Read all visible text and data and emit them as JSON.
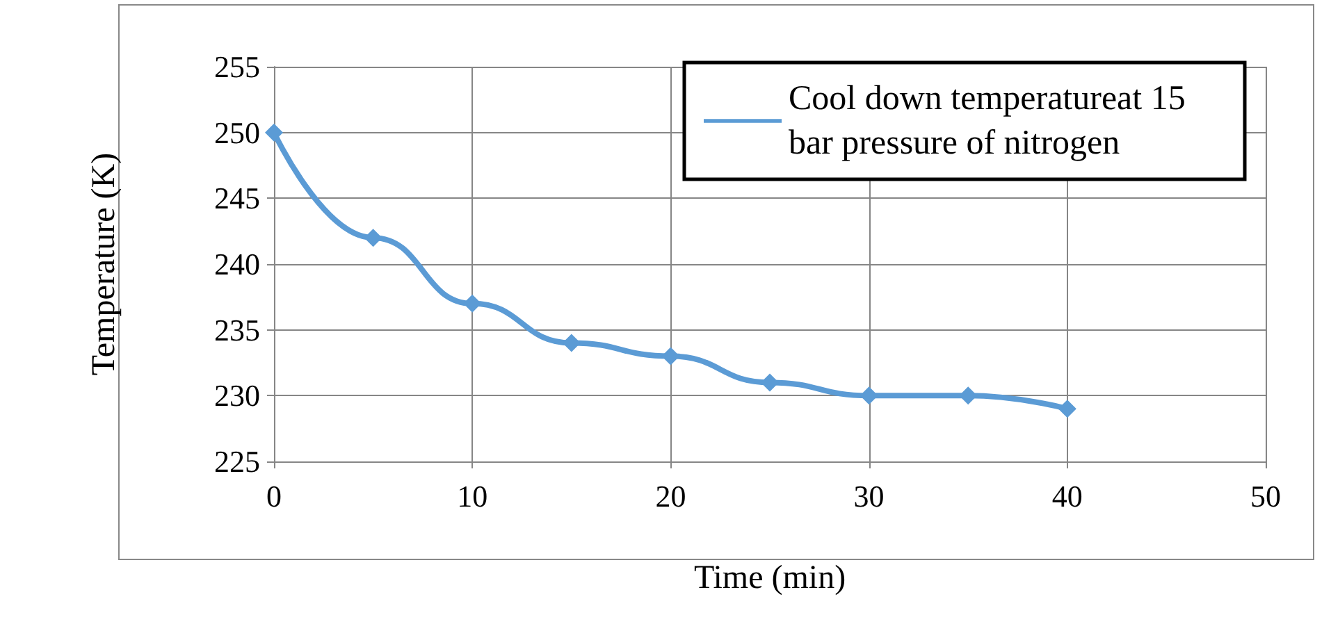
{
  "chart_data": {
    "type": "line",
    "xlabel": "Time (min)",
    "ylabel": "Temperature (K)",
    "x": [
      0,
      5,
      10,
      15,
      20,
      25,
      30,
      35,
      40
    ],
    "series": [
      {
        "name": "Cool down temperatureat 15 bar pressure of nitrogen",
        "color": "#5b9bd5",
        "values": [
          250,
          242,
          237,
          234,
          233,
          231,
          230,
          230,
          229
        ]
      }
    ],
    "xlim": [
      0,
      50
    ],
    "xticks": [
      0,
      10,
      20,
      30,
      40,
      50
    ],
    "ylim": [
      225,
      255
    ],
    "yticks": [
      225,
      230,
      235,
      240,
      245,
      250,
      255
    ],
    "grid": true,
    "legend": "top right",
    "marker": "diamond",
    "line_style": "solid"
  }
}
